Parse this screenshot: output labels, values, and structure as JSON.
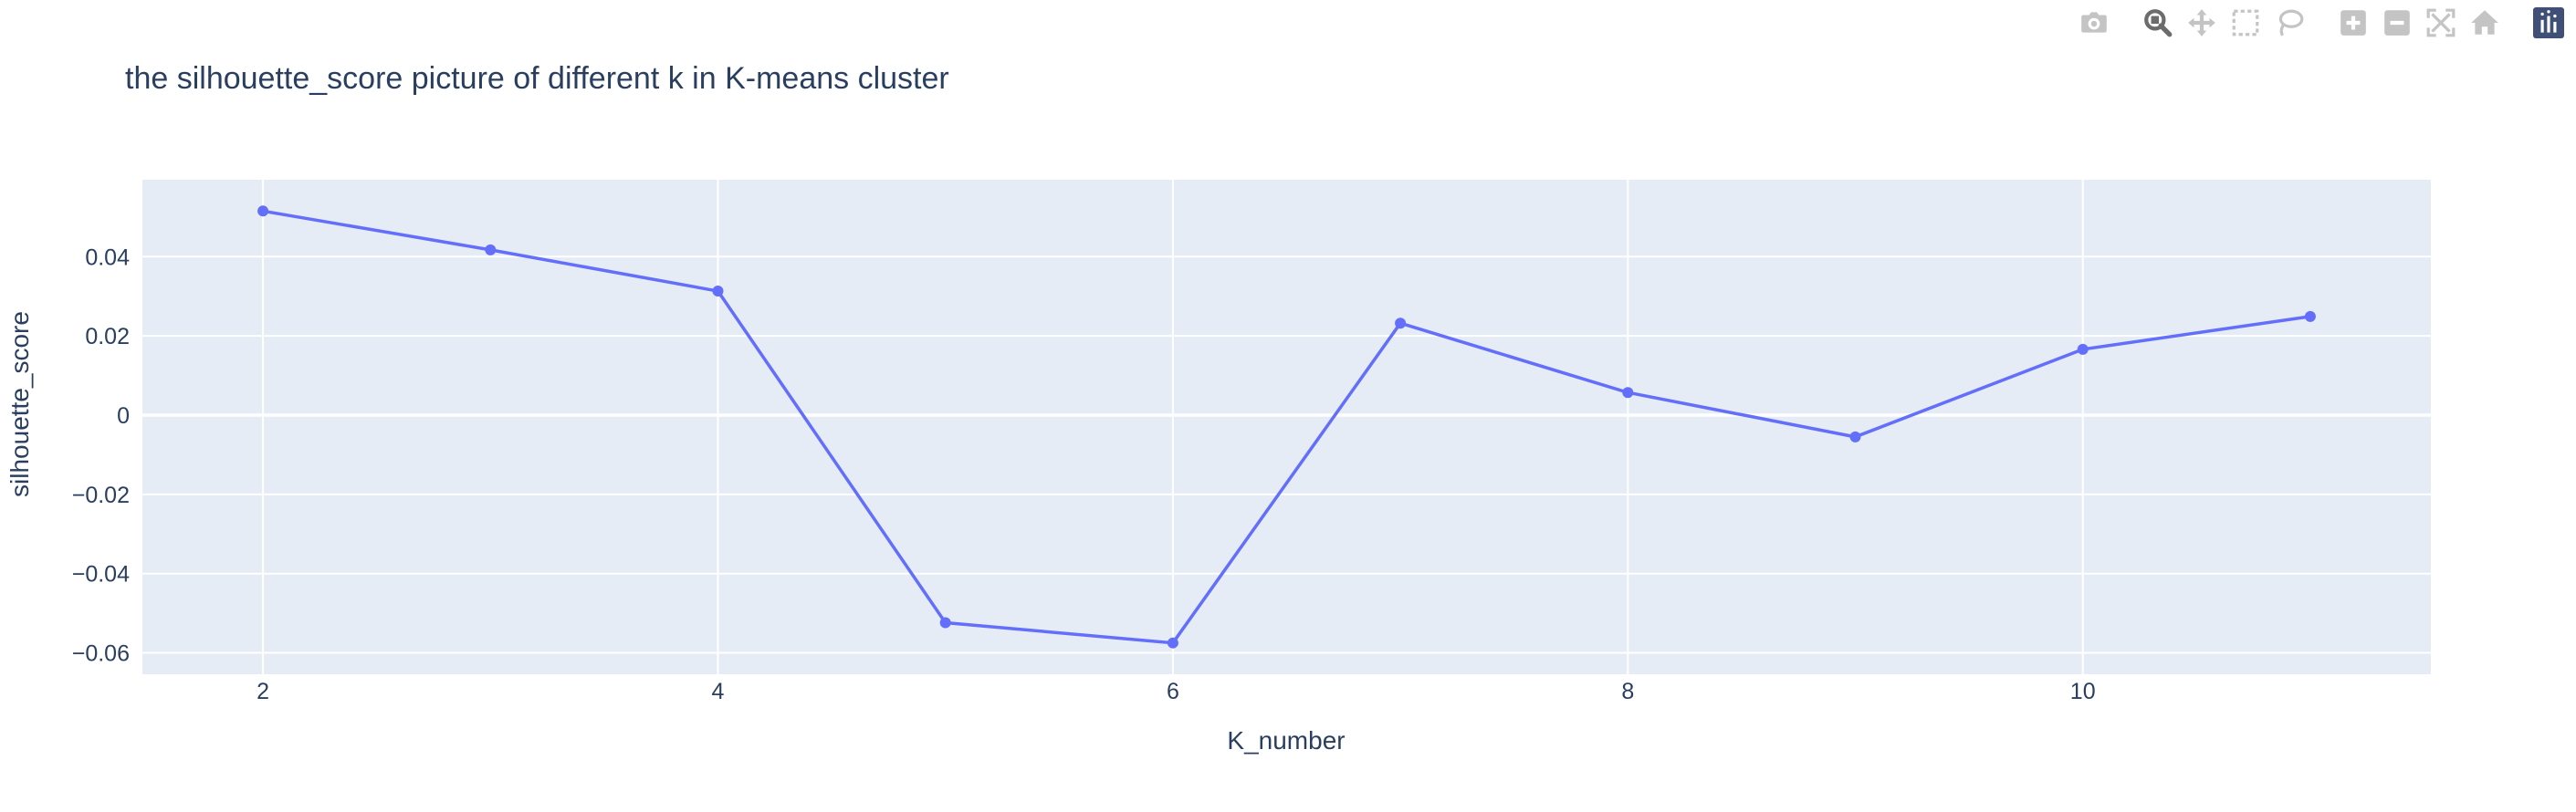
{
  "chart_data": {
    "type": "line",
    "title": "the silhouette_score picture of different k in K-means cluster",
    "xlabel": "K_number",
    "ylabel": "silhouette_score",
    "x": [
      2,
      3,
      4,
      5,
      6,
      7,
      8,
      9,
      10,
      11
    ],
    "y": [
      0.0515,
      0.0417,
      0.0313,
      -0.0524,
      -0.0575,
      0.0232,
      0.0057,
      -0.0055,
      0.0166,
      0.0249
    ],
    "x_ticks": [
      "2",
      "4",
      "6",
      "8",
      "10"
    ],
    "x_tick_values": [
      2,
      4,
      6,
      8,
      10
    ],
    "y_ticks": [
      "0.04",
      "0.02",
      "0",
      "−0.02",
      "−0.04",
      "−0.06"
    ],
    "y_tick_values": [
      0.04,
      0.02,
      0,
      -0.02,
      -0.04,
      -0.06
    ],
    "xlim": [
      1.47,
      11.53
    ],
    "ylim": [
      -0.0654,
      0.0594
    ],
    "grid": true,
    "colors": {
      "line": "#636efa",
      "plot_bg": "#e5ecf6",
      "grid": "#ffffff",
      "text": "#2a3f5f",
      "modebar_icon": "#c4c4c4",
      "modebar_icon_active": "#6c6c6c",
      "logo_bg": "#3f4f75"
    }
  },
  "modebar": {
    "groups": [
      [
        {
          "name": "camera-icon"
        }
      ],
      [
        {
          "name": "zoom-icon",
          "active": true
        },
        {
          "name": "pan-icon"
        },
        {
          "name": "box-select-icon"
        },
        {
          "name": "lasso-icon"
        }
      ],
      [
        {
          "name": "zoom-in-icon"
        },
        {
          "name": "zoom-out-icon"
        },
        {
          "name": "autoscale-icon"
        },
        {
          "name": "reset-axes-icon"
        }
      ],
      [
        {
          "name": "plotly-logo-icon"
        }
      ]
    ]
  }
}
